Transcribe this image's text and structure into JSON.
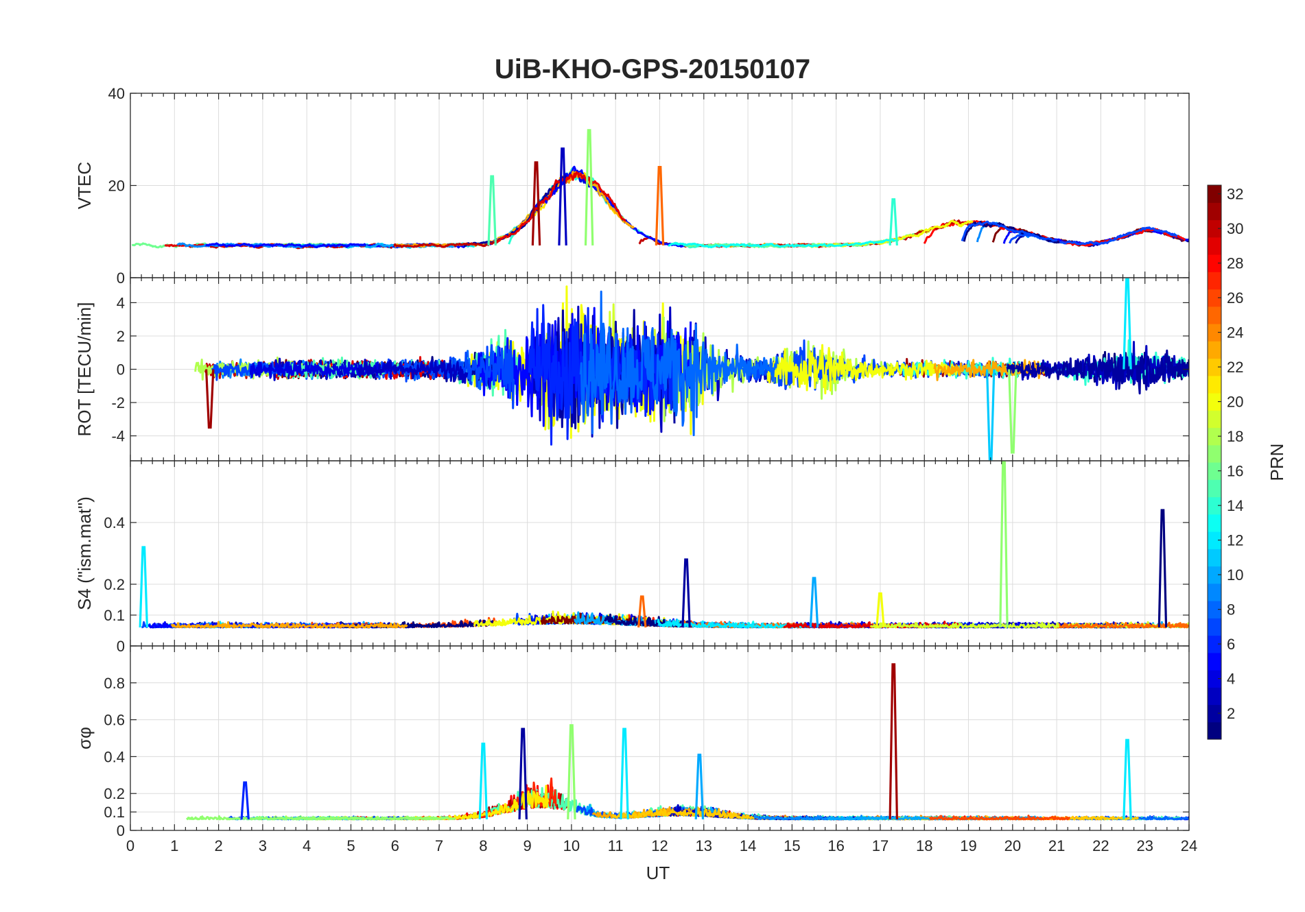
{
  "chart_data": {
    "type": "line",
    "title": "UiB-KHO-GPS-20150107",
    "xlabel": "UT",
    "xlim": [
      0,
      24
    ],
    "xticks": [
      "0",
      "1",
      "2",
      "3",
      "4",
      "5",
      "6",
      "7",
      "8",
      "9",
      "10",
      "11",
      "12",
      "13",
      "14",
      "15",
      "16",
      "17",
      "18",
      "19",
      "20",
      "21",
      "22",
      "23",
      "24"
    ],
    "colorbar": {
      "label": "PRN",
      "min": 1,
      "max": 32,
      "ticks": [
        "2",
        "4",
        "6",
        "8",
        "10",
        "12",
        "14",
        "16",
        "18",
        "20",
        "22",
        "24",
        "26",
        "28",
        "30",
        "32"
      ],
      "colormap": "jet"
    },
    "panels": [
      {
        "id": "vtec",
        "ylabel": "VTEC",
        "ylim": [
          0,
          40
        ],
        "yticks": [
          "0",
          "20",
          "40"
        ],
        "baseline": 7,
        "noise": 1.2,
        "storm_events": [
          {
            "center": 10.0,
            "width": 1.1,
            "amp": 18
          },
          {
            "center": 19.0,
            "width": 1.5,
            "amp": 6
          },
          {
            "center": 23.0,
            "width": 0.8,
            "amp": 4
          }
        ],
        "peaks": [
          {
            "x": 10.4,
            "y": 32,
            "prn": 17
          },
          {
            "x": 9.8,
            "y": 28,
            "prn": 3
          },
          {
            "x": 12.0,
            "y": 24,
            "prn": 25
          },
          {
            "x": 8.2,
            "y": 22,
            "prn": 15
          },
          {
            "x": 9.2,
            "y": 25,
            "prn": 31
          },
          {
            "x": 17.3,
            "y": 17,
            "prn": 14
          }
        ]
      },
      {
        "id": "rot",
        "ylabel": "ROT [TECU/min]",
        "ylim": [
          -5.5,
          5.5
        ],
        "yticks": [
          "4",
          "2",
          "0",
          "-2",
          "-4"
        ],
        "baseline": 0,
        "noise": 0.45,
        "storm_events": [
          {
            "center": 10.0,
            "width": 1.6,
            "amp": 5.5
          },
          {
            "center": 12.5,
            "width": 1.0,
            "amp": 4
          },
          {
            "center": 15.5,
            "width": 0.8,
            "amp": 2
          },
          {
            "center": 22.8,
            "width": 1.0,
            "amp": 1.2
          }
        ],
        "peaks": [
          {
            "x": 22.6,
            "y": 5.4,
            "prn": 12
          },
          {
            "x": 20.0,
            "y": -5.0,
            "prn": 17
          },
          {
            "x": 19.5,
            "y": -5.4,
            "prn": 11
          },
          {
            "x": 1.8,
            "y": -3.5,
            "prn": 31
          }
        ]
      },
      {
        "id": "s4",
        "ylabel": "S4 (\"ism.mat\")",
        "ylim": [
          0,
          0.6
        ],
        "yticks": [
          "0",
          "0.1",
          "0.2",
          "0.4"
        ],
        "baseline": 0.06,
        "noise": 0.012,
        "storm_events": [
          {
            "center": 10.0,
            "width": 2.0,
            "amp": 0.03
          }
        ],
        "peaks": [
          {
            "x": 19.8,
            "y": 0.6,
            "prn": 17
          },
          {
            "x": 23.4,
            "y": 0.44,
            "prn": 1
          },
          {
            "x": 0.3,
            "y": 0.32,
            "prn": 12
          },
          {
            "x": 12.6,
            "y": 0.28,
            "prn": 2
          },
          {
            "x": 15.5,
            "y": 0.22,
            "prn": 10
          },
          {
            "x": 11.6,
            "y": 0.16,
            "prn": 25
          },
          {
            "x": 17.0,
            "y": 0.17,
            "prn": 20
          }
        ]
      },
      {
        "id": "sigma",
        "ylabel": "σφ",
        "ylim": [
          0,
          1
        ],
        "yticks": [
          "0",
          "0.1",
          "0.2",
          "0.4",
          "0.6",
          "0.8"
        ],
        "baseline": 0.06,
        "noise": 0.012,
        "storm_events": [
          {
            "center": 9.3,
            "width": 1.0,
            "amp": 0.16
          },
          {
            "center": 12.5,
            "width": 1.2,
            "amp": 0.05
          }
        ],
        "peaks": [
          {
            "x": 17.3,
            "y": 0.9,
            "prn": 31
          },
          {
            "x": 10.0,
            "y": 0.57,
            "prn": 17
          },
          {
            "x": 8.9,
            "y": 0.55,
            "prn": 2
          },
          {
            "x": 11.2,
            "y": 0.55,
            "prn": 12
          },
          {
            "x": 22.6,
            "y": 0.49,
            "prn": 12
          },
          {
            "x": 8.0,
            "y": 0.47,
            "prn": 12
          },
          {
            "x": 12.9,
            "y": 0.41,
            "prn": 10
          },
          {
            "x": 2.6,
            "y": 0.26,
            "prn": 6
          }
        ]
      }
    ]
  }
}
